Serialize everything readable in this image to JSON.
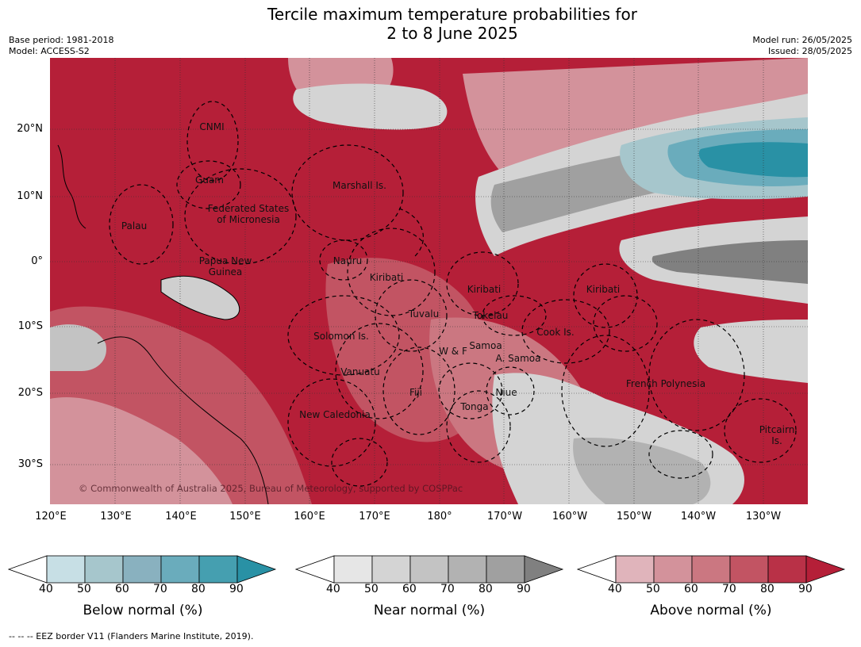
{
  "header": {
    "title_line1": "Tercile maximum temperature probabilities for",
    "title_line2": "2 to 8 June 2025",
    "base_period": "Base period: 1981-2018",
    "model": "Model: ACCESS-S2",
    "model_run": "Model run: 26/05/2025",
    "issued": "Issued: 28/05/2025"
  },
  "axes": {
    "lat_labels": [
      "20°N",
      "10°N",
      "0°",
      "10°S",
      "20°S",
      "30°S"
    ],
    "lon_labels": [
      "120°E",
      "130°E",
      "140°E",
      "150°E",
      "160°E",
      "170°E",
      "180°",
      "170°W",
      "160°W",
      "150°W",
      "140°W",
      "130°W"
    ]
  },
  "regions": {
    "cnmi": "CNMI",
    "guam": "Guam",
    "marshall": "Marshall Is.",
    "fsm_1": "Federated States",
    "fsm_2": "of Micronesia",
    "palau": "Palau",
    "png_1": "Papua New",
    "png_2": "Guinea",
    "nauru": "Nauru",
    "kiribati_w": "Kiribati",
    "kiribati_c": "Kiribati",
    "kiribati_e": "Kiribati",
    "tuvalu": "Tuvalu",
    "tokelau": "Tokelau",
    "solomon": "Solomon Is.",
    "cook": "Cook Is.",
    "samoa": "Samoa",
    "wf": "W & F",
    "asamoa": "A. Samoa",
    "vanuatu": "Vanuatu",
    "fiji": "Fiji",
    "niue": "Niue",
    "tonga": "Tonga",
    "new_caledonia": "New Caledonia",
    "french_polynesia": "French Polynesia",
    "pitcairn_1": "Pitcairn",
    "pitcairn_2": "Is."
  },
  "copyright": "© Commonwealth of Australia 2025, Bureau of Meteorology, supported by COSPPac",
  "colorbars": [
    {
      "label": "Below normal (%)",
      "colors": [
        "#ffffff",
        "#c7dfe5",
        "#a6c6cc",
        "#89b1bf",
        "#6aacbc",
        "#459fb0",
        "#2991a5"
      ]
    },
    {
      "label": "Near normal (%)",
      "colors": [
        "#ffffff",
        "#e6e6e6",
        "#d4d4d4",
        "#c3c3c3",
        "#b2b2b2",
        "#a0a0a0",
        "#808080"
      ]
    },
    {
      "label": "Above normal (%)",
      "colors": [
        "#ffffff",
        "#e0b4bb",
        "#d3929b",
        "#cb7781",
        "#c25463",
        "#b93147",
        "#b51f38"
      ]
    }
  ],
  "colorbar_ticks": [
    "40",
    "50",
    "60",
    "70",
    "80",
    "90"
  ],
  "footnote": "--  --  -- EEZ border V11 (Flanders Marine Institute, 2019)."
}
